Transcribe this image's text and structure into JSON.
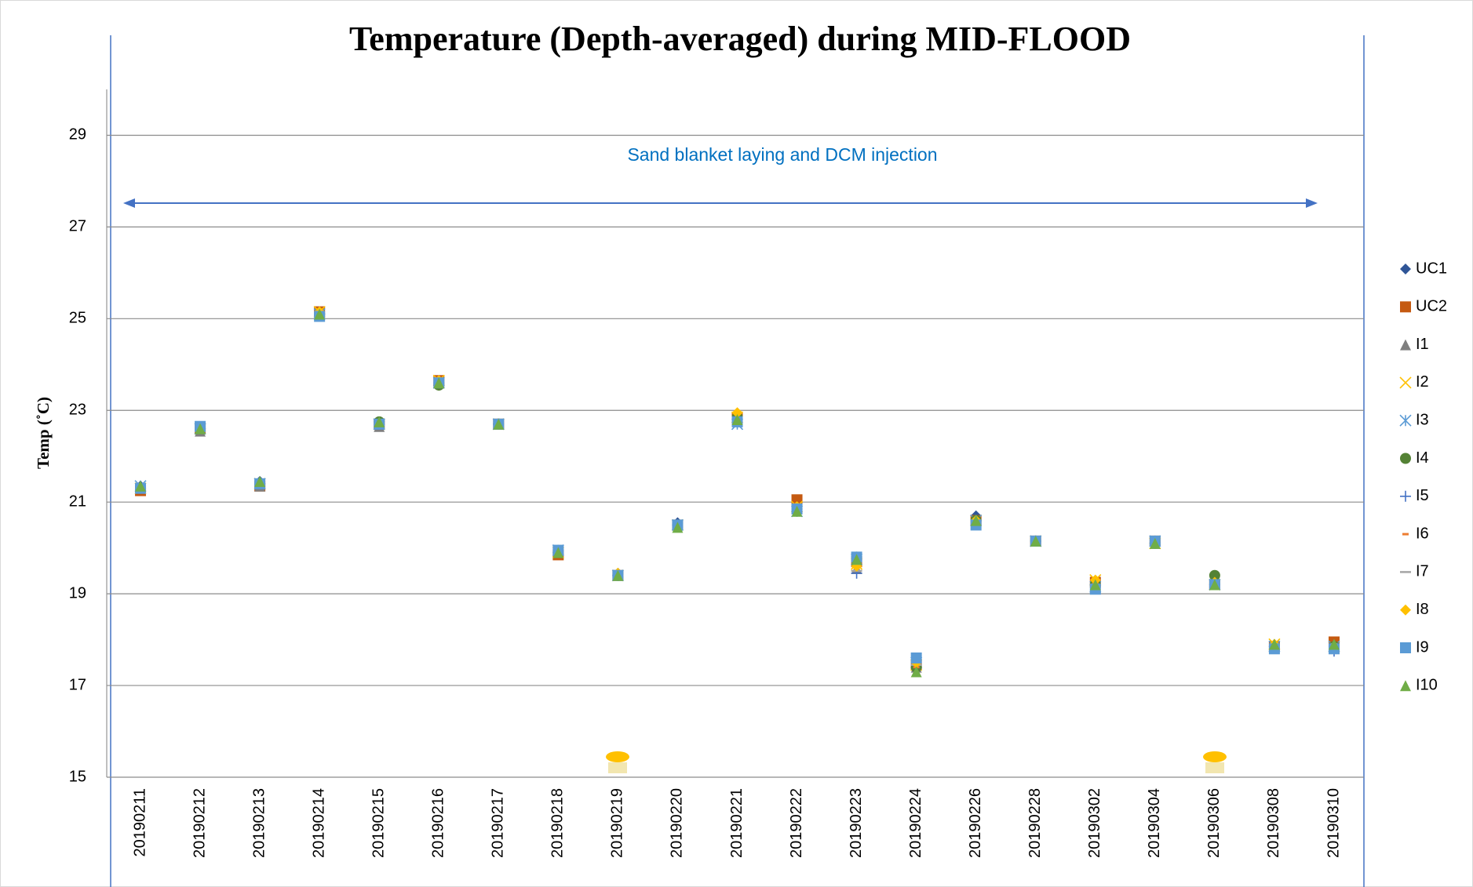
{
  "chart_data": {
    "type": "scatter",
    "title": "Temperature (Depth-averaged) during MID-FLOOD",
    "ylabel": "Temp (˚C)",
    "annotation": "Sand blanket laying and DCM injection",
    "categories": [
      "20190211",
      "20190212",
      "20190213",
      "20190214",
      "20190215",
      "20190216",
      "20190217",
      "20190218",
      "20190219",
      "20190220",
      "20190221",
      "20190222",
      "20190223",
      "20190224",
      "20190226",
      "20190228",
      "20190302",
      "20190304",
      "20190306",
      "20190308",
      "20190310"
    ],
    "ylim": [
      15,
      30
    ],
    "yticks": [
      15,
      17,
      19,
      21,
      23,
      25,
      27,
      29
    ],
    "grid": true,
    "legend": "right",
    "series": [
      {
        "name": "UC1",
        "color": "#2f5597",
        "marker": "diamond",
        "values": [
          21.35,
          22.6,
          21.45,
          25.1,
          22.75,
          23.6,
          22.7,
          19.9,
          19.45,
          20.55,
          22.8,
          20.8,
          19.8,
          17.45,
          20.7,
          20.15,
          19.2,
          20.1,
          19.2,
          17.85,
          17.8
        ]
      },
      {
        "name": "UC2",
        "color": "#c55a11",
        "marker": "square",
        "values": [
          21.25,
          22.6,
          21.35,
          25.15,
          22.7,
          23.65,
          22.7,
          19.85,
          19.4,
          20.5,
          22.85,
          21.05,
          19.7,
          17.45,
          20.6,
          20.15,
          19.25,
          20.15,
          19.2,
          17.85,
          17.95
        ]
      },
      {
        "name": "I1",
        "color": "#7f7f7f",
        "marker": "triangle",
        "values": [
          21.3,
          22.55,
          21.35,
          25.1,
          22.65,
          23.6,
          22.7,
          19.9,
          19.4,
          20.5,
          22.8,
          20.85,
          19.55,
          17.4,
          20.6,
          20.15,
          19.2,
          20.1,
          19.2,
          17.85,
          17.85
        ]
      },
      {
        "name": "I2",
        "color": "#ffc000",
        "marker": "x",
        "values": [
          21.3,
          22.6,
          21.4,
          25.15,
          22.7,
          23.65,
          22.7,
          19.9,
          19.4,
          20.5,
          22.85,
          20.9,
          19.65,
          17.45,
          20.6,
          20.15,
          19.3,
          20.1,
          19.2,
          17.9,
          17.85
        ]
      },
      {
        "name": "I3",
        "color": "#5b9bd5",
        "marker": "star",
        "values": [
          21.35,
          22.6,
          21.4,
          25.1,
          22.7,
          23.6,
          22.7,
          19.95,
          19.4,
          20.5,
          22.7,
          20.8,
          19.75,
          17.5,
          20.6,
          20.15,
          19.15,
          20.15,
          19.2,
          17.85,
          17.85
        ]
      },
      {
        "name": "I4",
        "color": "#548235",
        "marker": "circle",
        "values": [
          21.3,
          22.6,
          21.4,
          25.1,
          22.75,
          23.55,
          22.7,
          19.9,
          19.4,
          20.5,
          22.85,
          20.85,
          19.8,
          17.4,
          20.6,
          20.15,
          19.2,
          20.1,
          19.4,
          17.85,
          17.85
        ]
      },
      {
        "name": "I5",
        "color": "#4472c4",
        "marker": "plus",
        "values": [
          21.3,
          22.6,
          21.4,
          25.1,
          22.7,
          23.6,
          22.7,
          19.9,
          19.4,
          20.5,
          22.75,
          20.8,
          19.45,
          17.45,
          20.6,
          20.15,
          19.2,
          20.1,
          19.2,
          17.85,
          17.75
        ]
      },
      {
        "name": "I6",
        "color": "#ed7d31",
        "marker": "dash",
        "values": [
          21.25,
          22.6,
          21.4,
          25.15,
          22.7,
          23.65,
          22.7,
          19.85,
          19.4,
          20.5,
          22.8,
          20.95,
          19.6,
          17.4,
          20.6,
          20.15,
          19.25,
          20.1,
          19.2,
          17.85,
          17.9
        ]
      },
      {
        "name": "I7",
        "color": "#a5a5a5",
        "marker": "longdash",
        "values": [
          21.3,
          22.55,
          21.35,
          25.1,
          22.7,
          23.6,
          22.7,
          19.9,
          19.4,
          20.5,
          22.8,
          20.85,
          19.5,
          17.45,
          20.6,
          20.15,
          19.2,
          20.1,
          19.15,
          17.85,
          17.85
        ]
      },
      {
        "name": "I8",
        "color": "#ffc000",
        "marker": "diamond",
        "values": [
          21.3,
          22.6,
          21.4,
          25.15,
          22.7,
          23.65,
          22.7,
          19.9,
          19.45,
          20.5,
          22.95,
          20.9,
          19.6,
          17.5,
          20.6,
          20.15,
          19.3,
          20.1,
          19.25,
          17.9,
          17.85
        ]
      },
      {
        "name": "I9",
        "color": "#5b9bd5",
        "marker": "square",
        "values": [
          21.3,
          22.65,
          21.4,
          25.05,
          22.7,
          23.6,
          22.7,
          19.95,
          19.4,
          20.5,
          22.75,
          20.85,
          19.8,
          17.6,
          20.5,
          20.15,
          19.1,
          20.15,
          19.2,
          17.8,
          17.8
        ]
      },
      {
        "name": "I10",
        "color": "#70ad47",
        "marker": "triangle",
        "values": [
          21.35,
          22.6,
          21.45,
          25.1,
          22.75,
          23.6,
          22.7,
          19.9,
          19.4,
          20.45,
          22.8,
          20.8,
          19.75,
          17.3,
          20.6,
          20.15,
          19.2,
          20.1,
          19.2,
          17.9,
          17.9
        ]
      }
    ]
  }
}
